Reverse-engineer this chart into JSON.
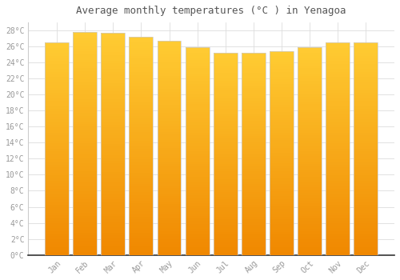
{
  "title": "Average monthly temperatures (°C ) in Yenagoa",
  "months": [
    "Jan",
    "Feb",
    "Mar",
    "Apr",
    "May",
    "Jun",
    "Jul",
    "Aug",
    "Sep",
    "Oct",
    "Nov",
    "Dec"
  ],
  "values": [
    26.5,
    27.8,
    27.7,
    27.2,
    26.7,
    25.9,
    25.2,
    25.2,
    25.4,
    25.9,
    26.5,
    26.5
  ],
  "bar_color_top": "#FFCC33",
  "bar_color_bottom": "#F08800",
  "background_color": "#FFFFFF",
  "plot_bg_color": "#FFFFFF",
  "grid_color": "#DDDDDD",
  "tick_label_color": "#999999",
  "title_color": "#555555",
  "ylim": [
    0,
    29
  ],
  "ytick_step": 2,
  "bar_width": 0.85,
  "border_color": "#CCCCCC"
}
